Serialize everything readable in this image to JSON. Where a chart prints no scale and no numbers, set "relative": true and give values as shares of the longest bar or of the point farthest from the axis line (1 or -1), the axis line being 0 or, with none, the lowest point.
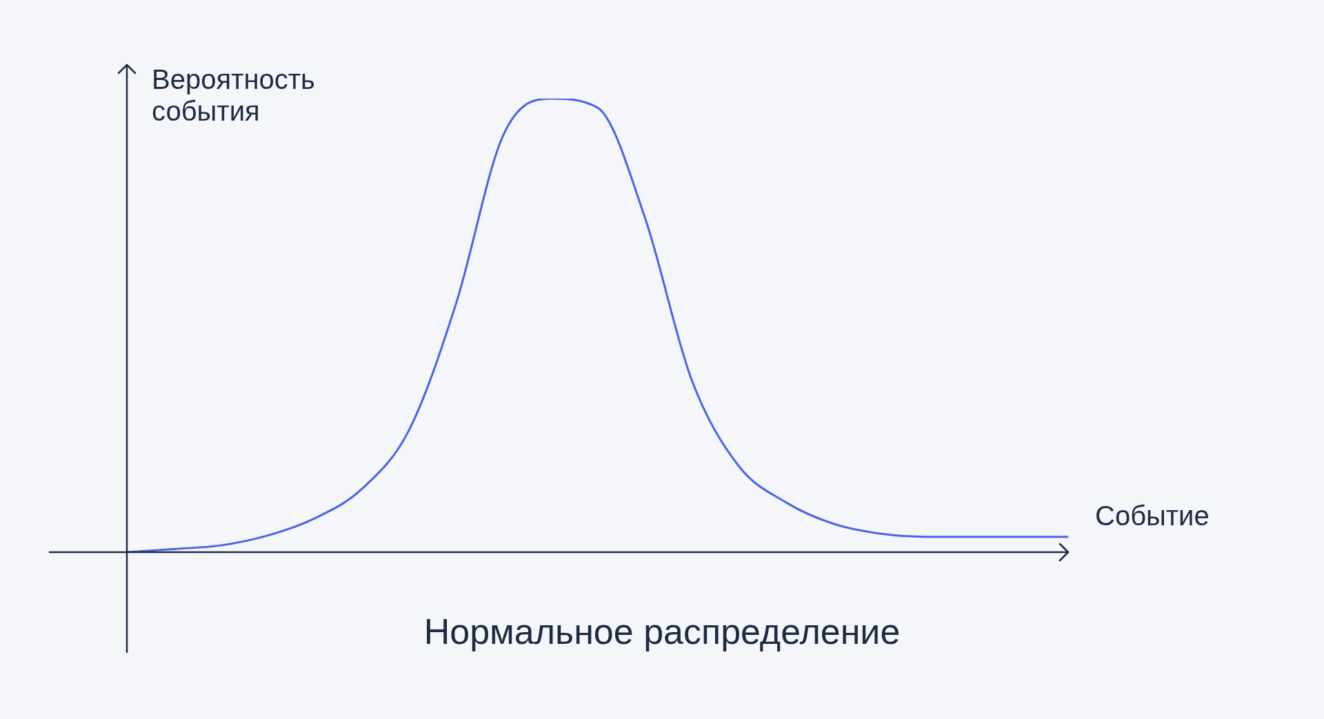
{
  "chart_data": {
    "type": "line",
    "title": "Нормальное распределение",
    "xlabel": "Событие",
    "ylabel": "Вероятность события",
    "relative": true,
    "categories": [
      null,
      null,
      null,
      null,
      null,
      null,
      null,
      null,
      null,
      null,
      null,
      null,
      null,
      null,
      null,
      null,
      null,
      null,
      null,
      null,
      null
    ],
    "series": [
      {
        "color": "#4a63e7",
        "values": [
          0,
          0.007,
          0.015,
          0.037,
          0.075,
          0.14,
          0.27,
          0.55,
          0.92,
          1,
          0.98,
          0.74,
          0.38,
          0.19,
          0.11,
          0.063,
          0.041,
          0.034,
          0.034,
          0.034,
          0.034
        ]
      }
    ],
    "legend": false,
    "marker": "none",
    "line_style": "solid"
  }
}
